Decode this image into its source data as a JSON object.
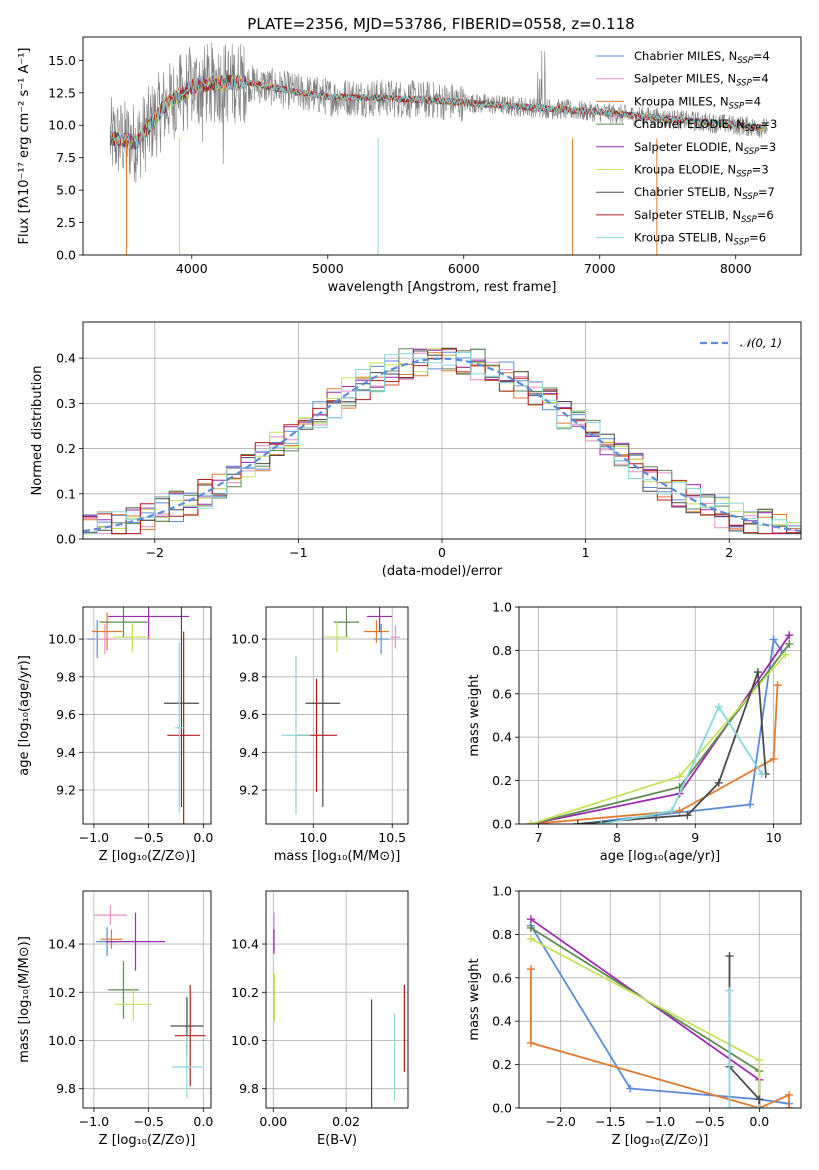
{
  "title": "PLATE=2356, MJD=53786, FIBERID=0558, z=0.118",
  "colors": {
    "chabrier_miles": "#5b8bd9",
    "salpeter_miles": "#e48fc6",
    "kroupa_miles": "#e07b2f",
    "chabrier_elodie": "#5e8a55",
    "salpeter_elodie": "#9d2ab0",
    "kroupa_elodie": "#c6e25a",
    "chabrier_stelib": "#4a4a4a",
    "salpeter_stelib": "#b51d1d",
    "kroupa_stelib": "#86d8dc",
    "data": "#808080",
    "normal": "#5b8bd9"
  },
  "chart_data": [
    {
      "id": "spectrum",
      "type": "line",
      "xlabel": "wavelength [Angstrom, rest frame]",
      "ylabel": "Flux [fλ10⁻¹⁷ erg cm⁻² s⁻¹ A⁻¹]",
      "xlim": [
        3200,
        8480
      ],
      "ylim": [
        0,
        16.8
      ],
      "xticks": [
        4000,
        5000,
        6000,
        7000,
        8000
      ],
      "yticks": [
        0.0,
        2.5,
        5.0,
        7.5,
        10.0,
        12.5,
        15.0
      ],
      "continuum": {
        "x": [
          3400,
          3600,
          3800,
          4000,
          4200,
          4400,
          4600,
          4800,
          5000,
          5400,
          5800,
          6200,
          6600,
          7000,
          7400,
          7800,
          8200
        ],
        "y": [
          9.0,
          8.7,
          11.5,
          13.0,
          13.3,
          13.3,
          12.9,
          12.5,
          12.2,
          12.1,
          11.9,
          11.6,
          11.3,
          11.0,
          10.6,
          10.2,
          9.8
        ]
      },
      "legend": [
        "Chabrier MILES, N_SSP=4",
        "Salpeter MILES, N_SSP=4",
        "Kroupa MILES, N_SSP=4",
        "Chabrier ELODIE, N_SSP=3",
        "Salpeter ELODIE, N_SSP=3",
        "Kroupa ELODIE, N_SSP=3",
        "Chabrier STELIB, N_SSP=7",
        "Salpeter STELIB, N_SSP=6",
        "Kroupa STELIB, N_SSP=6"
      ]
    },
    {
      "id": "residuals",
      "type": "step",
      "xlabel": "(data-model)/error",
      "ylabel": "Normed distribution",
      "xlim": [
        -2.5,
        2.5
      ],
      "ylim": [
        0,
        0.48
      ],
      "xticks": [
        -2,
        -1,
        0,
        1,
        2
      ],
      "yticks": [
        0.0,
        0.1,
        0.2,
        0.3,
        0.4
      ],
      "legend": "𝒩(0, 1)"
    },
    {
      "id": "age_vs_Z",
      "type": "scatter",
      "xlabel": "Z [log₁₀(Z/Z⊙)]",
      "ylabel": "age  [log₁₀(age/yr)]",
      "xlim": [
        -1.1,
        0.07
      ],
      "ylim": [
        9.02,
        10.17
      ],
      "xticks": [
        -1.0,
        -0.5,
        0.0
      ],
      "yticks": [
        9.2,
        9.4,
        9.6,
        9.8,
        10.0
      ],
      "points": [
        {
          "x": -0.97,
          "y": 10.0,
          "xe": 0.09,
          "ye": 0.1,
          "c": "chabrier_miles"
        },
        {
          "x": -0.9,
          "y": 10.0,
          "xe": 0.1,
          "ye": 0.08,
          "c": "salpeter_miles"
        },
        {
          "x": -0.88,
          "y": 10.04,
          "xe": 0.14,
          "ye": 0.1,
          "c": "kroupa_miles"
        },
        {
          "x": -0.73,
          "y": 10.09,
          "xe": 0.22,
          "ye": 0.08,
          "c": "chabrier_elodie"
        },
        {
          "x": -0.5,
          "y": 10.12,
          "xe": 0.37,
          "ye": 0.12,
          "c": "salpeter_elodie"
        },
        {
          "x": -0.65,
          "y": 10.01,
          "xe": 0.17,
          "ye": 0.08,
          "c": "kroupa_elodie"
        },
        {
          "x": -0.2,
          "y": 9.66,
          "xe": 0.16,
          "ye": 0.55,
          "c": "chabrier_stelib"
        },
        {
          "x": -0.18,
          "y": 9.49,
          "xe": 0.15,
          "ye": 0.55,
          "c": "salpeter_stelib"
        },
        {
          "x": -0.22,
          "y": 9.53,
          "xe": 0.04,
          "ye": 0.45,
          "c": "kroupa_stelib"
        }
      ]
    },
    {
      "id": "age_vs_mass",
      "type": "scatter",
      "xlabel": "mass [log₁₀(M/M⊙)]",
      "ylabel": "",
      "xlim": [
        9.7,
        10.6
      ],
      "ylim": [
        9.02,
        10.17
      ],
      "xticks": [
        10.0,
        10.5
      ],
      "yticks": [
        9.2,
        9.4,
        9.6,
        9.8,
        10.0
      ],
      "points": [
        {
          "x": 10.43,
          "y": 10.0,
          "xe": 0.05,
          "ye": 0.08,
          "c": "chabrier_miles"
        },
        {
          "x": 10.52,
          "y": 10.01,
          "xe": 0.03,
          "ye": 0.06,
          "c": "salpeter_miles"
        },
        {
          "x": 10.4,
          "y": 10.04,
          "xe": 0.08,
          "ye": 0.06,
          "c": "kroupa_miles"
        },
        {
          "x": 10.21,
          "y": 10.09,
          "xe": 0.08,
          "ye": 0.08,
          "c": "chabrier_elodie"
        },
        {
          "x": 10.42,
          "y": 10.12,
          "xe": 0.08,
          "ye": 0.08,
          "c": "salpeter_elodie"
        },
        {
          "x": 10.15,
          "y": 10.01,
          "xe": 0.08,
          "ye": 0.08,
          "c": "kroupa_elodie"
        },
        {
          "x": 10.06,
          "y": 9.66,
          "xe": 0.11,
          "ye": 0.55,
          "c": "chabrier_stelib"
        },
        {
          "x": 10.02,
          "y": 9.49,
          "xe": 0.13,
          "ye": 0.3,
          "c": "salpeter_stelib"
        },
        {
          "x": 9.89,
          "y": 9.49,
          "xe": 0.09,
          "ye": 0.42,
          "c": "kroupa_stelib"
        }
      ]
    },
    {
      "id": "weight_vs_age",
      "type": "line",
      "xlabel": "age  [log₁₀(age/yr)]",
      "ylabel": "mass weight",
      "xlim": [
        6.75,
        10.35
      ],
      "ylim": [
        0,
        1
      ],
      "xticks": [
        7,
        8,
        9,
        10
      ],
      "yticks": [
        0.0,
        0.2,
        0.4,
        0.6,
        0.8,
        1.0
      ],
      "series": [
        {
          "c": "chabrier_miles",
          "x": [
            7.5,
            9.7,
            10.0,
            10.1
          ],
          "y": [
            0.0,
            0.09,
            0.85,
            0.8
          ]
        },
        {
          "c": "kroupa_miles",
          "x": [
            6.9,
            8.8,
            10.0,
            10.05
          ],
          "y": [
            0.0,
            0.06,
            0.3,
            0.64
          ]
        },
        {
          "c": "salpeter_elodie",
          "x": [
            6.9,
            8.8,
            10.2
          ],
          "y": [
            0.0,
            0.14,
            0.87
          ]
        },
        {
          "c": "chabrier_elodie",
          "x": [
            6.9,
            8.8,
            10.2
          ],
          "y": [
            0.0,
            0.17,
            0.83
          ]
        },
        {
          "c": "kroupa_elodie",
          "x": [
            6.9,
            8.8,
            10.15
          ],
          "y": [
            0.0,
            0.22,
            0.78
          ]
        },
        {
          "c": "chabrier_stelib",
          "x": [
            7.5,
            8.5,
            8.9,
            9.3,
            9.8,
            9.9
          ],
          "y": [
            0.0,
            0.03,
            0.04,
            0.19,
            0.7,
            0.23
          ]
        },
        {
          "c": "kroupa_stelib",
          "x": [
            7.8,
            8.7,
            9.3,
            9.85
          ],
          "y": [
            0.0,
            0.06,
            0.54,
            0.23
          ]
        }
      ]
    },
    {
      "id": "mass_vs_Z",
      "type": "scatter",
      "xlabel": "Z [log₁₀(Z/Z⊙)]",
      "ylabel": "mass [log₁₀(M/M⊙)]",
      "xlim": [
        -1.1,
        0.07
      ],
      "ylim": [
        9.72,
        10.62
      ],
      "xticks": [
        -1.0,
        -0.5,
        0.0
      ],
      "yticks": [
        9.8,
        10.0,
        10.2,
        10.4
      ],
      "points": [
        {
          "x": -0.88,
          "y": 10.41,
          "xe": 0.1,
          "ye": 0.06,
          "c": "chabrier_miles"
        },
        {
          "x": -0.85,
          "y": 10.52,
          "xe": 0.15,
          "ye": 0.04,
          "c": "salpeter_miles"
        },
        {
          "x": -0.84,
          "y": 10.42,
          "xe": 0.1,
          "ye": 0.04,
          "c": "kroupa_miles"
        },
        {
          "x": -0.73,
          "y": 10.21,
          "xe": 0.14,
          "ye": 0.12,
          "c": "chabrier_elodie"
        },
        {
          "x": -0.62,
          "y": 10.41,
          "xe": 0.27,
          "ye": 0.12,
          "c": "salpeter_elodie"
        },
        {
          "x": -0.64,
          "y": 10.15,
          "xe": 0.17,
          "ye": 0.07,
          "c": "kroupa_elodie"
        },
        {
          "x": -0.15,
          "y": 10.06,
          "xe": 0.15,
          "ye": 0.12,
          "c": "chabrier_stelib"
        },
        {
          "x": -0.12,
          "y": 10.02,
          "xe": 0.14,
          "ye": 0.21,
          "c": "salpeter_stelib"
        },
        {
          "x": -0.15,
          "y": 9.89,
          "xe": 0.14,
          "ye": 0.13,
          "c": "kroupa_stelib"
        }
      ]
    },
    {
      "id": "mass_vs_ebv",
      "type": "scatter",
      "xlabel": "E(B-V)",
      "ylabel": "",
      "xlim": [
        -0.002,
        0.037
      ],
      "ylim": [
        9.72,
        10.62
      ],
      "xticks": [
        0.0,
        0.02
      ],
      "xtickLabels": [
        "0.00",
        "0.02"
      ],
      "yticks": [
        9.8,
        10.0,
        10.2,
        10.4
      ],
      "points": [
        {
          "x": 0.0002,
          "y": 10.45,
          "xe": 0,
          "ye": 0.08,
          "c": "salpeter_miles"
        },
        {
          "x": 0.0002,
          "y": 10.41,
          "xe": 0,
          "ye": 0.05,
          "c": "salpeter_elodie"
        },
        {
          "x": 0.0003,
          "y": 10.18,
          "xe": 0,
          "ye": 0.1,
          "c": "kroupa_elodie"
        },
        {
          "x": 0.027,
          "y": 9.94,
          "xe": 0,
          "ye": 0.23,
          "c": "chabrier_stelib"
        },
        {
          "x": 0.0333,
          "y": 9.93,
          "xe": 0,
          "ye": 0.18,
          "c": "kroupa_stelib"
        },
        {
          "x": 0.036,
          "y": 10.05,
          "xe": 0,
          "ye": 0.18,
          "c": "salpeter_stelib"
        }
      ]
    },
    {
      "id": "weight_vs_Z",
      "type": "line",
      "xlabel": "Z [log₁₀(Z/Z⊙)]",
      "ylabel": "mass weight",
      "xlim": [
        -2.42,
        0.42
      ],
      "ylim": [
        0,
        1
      ],
      "xticks": [
        -2.0,
        -1.5,
        -1.0,
        -0.5,
        0.0
      ],
      "yticks": [
        0.0,
        0.2,
        0.4,
        0.6,
        0.8,
        1.0
      ],
      "series": [
        {
          "c": "chabrier_miles",
          "x": [
            -2.3,
            -1.3,
            0.0,
            0.3
          ],
          "y": [
            0.84,
            0.09,
            0.04,
            0.02
          ]
        },
        {
          "c": "kroupa_miles",
          "x": [
            -2.3,
            -2.3,
            0.0,
            0.3,
            0.3
          ],
          "y": [
            0.64,
            0.3,
            0.0,
            0.06,
            0.0
          ]
        },
        {
          "c": "salpeter_elodie",
          "x": [
            -2.3,
            0.0,
            0.0
          ],
          "y": [
            0.87,
            0.13,
            0.0
          ]
        },
        {
          "c": "chabrier_elodie",
          "x": [
            -2.3,
            0.0,
            0.0
          ],
          "y": [
            0.83,
            0.17,
            0.0
          ]
        },
        {
          "c": "kroupa_elodie",
          "x": [
            -2.3,
            0.0,
            0.0
          ],
          "y": [
            0.78,
            0.22,
            0.0
          ]
        },
        {
          "c": "chabrier_stelib",
          "x": [
            -0.3,
            -0.3,
            0.0,
            0.0
          ],
          "y": [
            0.7,
            0.19,
            0.04,
            0.0
          ]
        },
        {
          "c": "kroupa_stelib",
          "x": [
            -0.3,
            -0.3,
            0.0
          ],
          "y": [
            0.54,
            0.0,
            0.0
          ]
        }
      ]
    }
  ]
}
